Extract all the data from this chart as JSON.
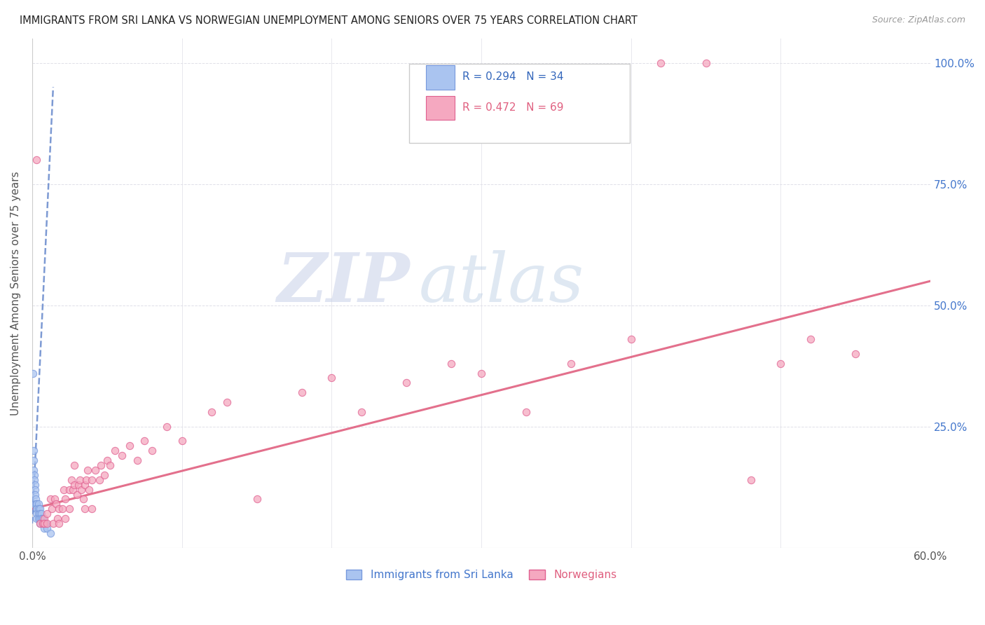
{
  "title": "IMMIGRANTS FROM SRI LANKA VS NORWEGIAN UNEMPLOYMENT AMONG SENIORS OVER 75 YEARS CORRELATION CHART",
  "source": "Source: ZipAtlas.com",
  "ylabel": "Unemployment Among Seniors over 75 years",
  "legend_bottom": [
    "Immigrants from Sri Lanka",
    "Norwegians"
  ],
  "sri_lanka_R": 0.294,
  "sri_lanka_N": 34,
  "norwegians_R": 0.472,
  "norwegians_N": 69,
  "sri_lanka_color": "#aac4f0",
  "sri_lanka_edge_color": "#7799dd",
  "norwegians_color": "#f5a8c0",
  "norwegians_edge_color": "#e06090",
  "sri_lanka_line_color": "#6688cc",
  "norwegians_line_color": "#e06080",
  "watermark_zip": "ZIP",
  "watermark_atlas": "atlas",
  "watermark_color_zip": "#c8d0e8",
  "watermark_color_atlas": "#b8c8e0",
  "xlim": [
    0.0,
    0.6
  ],
  "ylim": [
    0.0,
    1.05
  ],
  "x_ticks": [
    0.0,
    0.1,
    0.2,
    0.3,
    0.4,
    0.5,
    0.6
  ],
  "x_tick_labels": [
    "0.0%",
    "",
    "",
    "",
    "",
    "",
    "60.0%"
  ],
  "y_ticks": [
    0.0,
    0.25,
    0.5,
    0.75,
    1.0
  ],
  "y_tick_labels": [
    "",
    "25.0%",
    "50.0%",
    "75.0%",
    "100.0%"
  ],
  "sri_lanka_scatter_x": [
    0.0005,
    0.001,
    0.001,
    0.001,
    0.0015,
    0.0015,
    0.002,
    0.002,
    0.002,
    0.002,
    0.0025,
    0.003,
    0.003,
    0.003,
    0.003,
    0.003,
    0.003,
    0.004,
    0.004,
    0.004,
    0.004,
    0.005,
    0.005,
    0.005,
    0.005,
    0.006,
    0.006,
    0.007,
    0.007,
    0.008,
    0.008,
    0.009,
    0.01,
    0.012
  ],
  "sri_lanka_scatter_y": [
    0.36,
    0.2,
    0.18,
    0.16,
    0.15,
    0.14,
    0.13,
    0.12,
    0.11,
    0.09,
    0.1,
    0.09,
    0.09,
    0.08,
    0.08,
    0.07,
    0.06,
    0.09,
    0.08,
    0.07,
    0.06,
    0.08,
    0.07,
    0.06,
    0.05,
    0.07,
    0.06,
    0.06,
    0.05,
    0.05,
    0.04,
    0.05,
    0.04,
    0.03
  ],
  "norwegians_scatter_x": [
    0.003,
    0.005,
    0.007,
    0.008,
    0.008,
    0.01,
    0.01,
    0.012,
    0.013,
    0.014,
    0.015,
    0.016,
    0.017,
    0.018,
    0.018,
    0.02,
    0.021,
    0.022,
    0.022,
    0.025,
    0.025,
    0.026,
    0.027,
    0.028,
    0.028,
    0.03,
    0.031,
    0.032,
    0.033,
    0.034,
    0.035,
    0.035,
    0.036,
    0.037,
    0.038,
    0.04,
    0.04,
    0.042,
    0.045,
    0.046,
    0.048,
    0.05,
    0.052,
    0.055,
    0.06,
    0.065,
    0.07,
    0.075,
    0.08,
    0.09,
    0.1,
    0.12,
    0.13,
    0.15,
    0.18,
    0.2,
    0.22,
    0.25,
    0.28,
    0.3,
    0.33,
    0.36,
    0.4,
    0.42,
    0.45,
    0.48,
    0.5,
    0.52,
    0.55
  ],
  "norwegians_scatter_y": [
    0.8,
    0.05,
    0.05,
    0.06,
    0.05,
    0.05,
    0.07,
    0.1,
    0.08,
    0.05,
    0.1,
    0.09,
    0.06,
    0.08,
    0.05,
    0.08,
    0.12,
    0.1,
    0.06,
    0.12,
    0.08,
    0.14,
    0.12,
    0.17,
    0.13,
    0.11,
    0.13,
    0.14,
    0.12,
    0.1,
    0.13,
    0.08,
    0.14,
    0.16,
    0.12,
    0.14,
    0.08,
    0.16,
    0.14,
    0.17,
    0.15,
    0.18,
    0.17,
    0.2,
    0.19,
    0.21,
    0.18,
    0.22,
    0.2,
    0.25,
    0.22,
    0.28,
    0.3,
    0.1,
    0.32,
    0.35,
    0.28,
    0.34,
    0.38,
    0.36,
    0.28,
    0.38,
    0.43,
    1.0,
    1.0,
    0.14,
    0.38,
    0.43,
    0.4
  ],
  "sri_lanka_trendline_x": [
    0.0,
    0.014
  ],
  "sri_lanka_trendline_y": [
    0.05,
    0.95
  ],
  "norwegians_trendline_x": [
    0.0,
    0.6
  ],
  "norwegians_trendline_y": [
    0.08,
    0.55
  ]
}
